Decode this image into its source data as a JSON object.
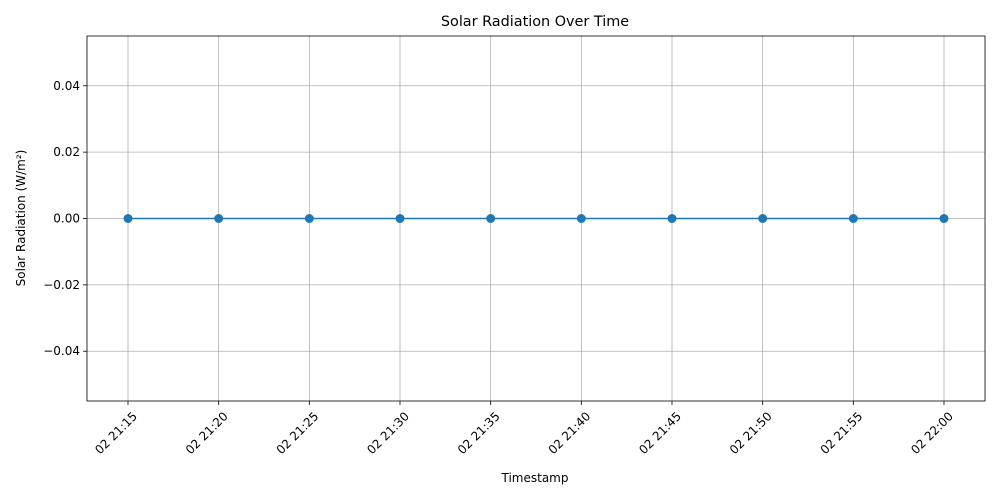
{
  "chart_data": {
    "type": "line",
    "title": "Solar Radiation Over Time",
    "xlabel": "Timestamp",
    "ylabel": "Solar Radiation (W/m²)",
    "x": [
      "02 21:15",
      "02 21:20",
      "02 21:25",
      "02 21:30",
      "02 21:35",
      "02 21:40",
      "02 21:45",
      "02 21:50",
      "02 21:55",
      "02 22:00"
    ],
    "series": [
      {
        "values": [
          0,
          0,
          0,
          0,
          0,
          0,
          0,
          0,
          0,
          0
        ],
        "color": "#1f77b4",
        "marker": "circle"
      }
    ],
    "yticks": [
      "−0.04",
      "−0.02",
      "0.00",
      "0.02",
      "0.04"
    ],
    "ytick_values": [
      -0.04,
      -0.02,
      0.0,
      0.02,
      0.04
    ],
    "ylim": [
      -0.055,
      0.055
    ],
    "grid": true,
    "colors": {
      "grid": "#b0b0b0",
      "axis": "#000000"
    }
  }
}
